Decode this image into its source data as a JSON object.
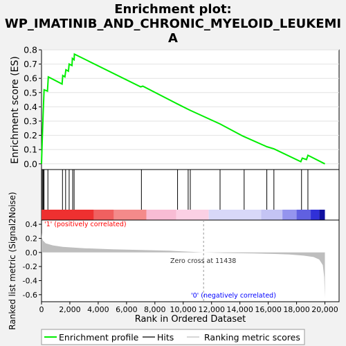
{
  "title_line1": "Enrichment plot:",
  "title_line2": "WP_IMATINIB_AND_CHRONIC_MYELOID_LEUKEMI",
  "title_line3": "A",
  "colors": {
    "es_line": "#00ee00",
    "hit": "#000000",
    "metric_fill": "#bebebe",
    "background": "#f2f2f2",
    "pos_label": "#ff0000",
    "neg_label": "#0000ff"
  },
  "chart_data": [
    {
      "type": "line",
      "name": "enrichment-profile",
      "ylabel": "Enrichment score (ES)",
      "xlim": [
        0,
        21000
      ],
      "ylim": [
        -0.04,
        0.8
      ],
      "yticks": [
        "0.0",
        "0.1",
        "0.2",
        "0.3",
        "0.4",
        "0.5",
        "0.6",
        "0.7",
        "0.8"
      ],
      "points": [
        [
          0,
          0
        ],
        [
          60,
          0.19
        ],
        [
          120,
          0.37
        ],
        [
          180,
          0.52
        ],
        [
          420,
          0.51
        ],
        [
          480,
          0.61
        ],
        [
          1450,
          0.56
        ],
        [
          1500,
          0.62
        ],
        [
          1650,
          0.61
        ],
        [
          1720,
          0.66
        ],
        [
          1900,
          0.65
        ],
        [
          1950,
          0.7
        ],
        [
          2150,
          0.69
        ],
        [
          2180,
          0.74
        ],
        [
          2300,
          0.73
        ],
        [
          2320,
          0.77
        ],
        [
          7000,
          0.54
        ],
        [
          7150,
          0.545
        ],
        [
          9600,
          0.42
        ],
        [
          10300,
          0.385
        ],
        [
          10500,
          0.375
        ],
        [
          12600,
          0.28
        ],
        [
          14200,
          0.195
        ],
        [
          15900,
          0.12
        ],
        [
          16400,
          0.105
        ],
        [
          18300,
          0.015
        ],
        [
          18400,
          0.04
        ],
        [
          18700,
          0.03
        ],
        [
          18800,
          0.06
        ],
        [
          20000,
          0
        ]
      ]
    },
    {
      "type": "scatter",
      "name": "hits",
      "x": [
        60,
        120,
        180,
        450,
        1480,
        1700,
        1950,
        2200,
        2300,
        7050,
        9600,
        10350,
        10500,
        12600,
        14300,
        15900,
        16400,
        18350,
        18800
      ]
    },
    {
      "type": "area",
      "name": "ranked-list-metric",
      "ylabel": "Ranked list metric (Signal2Noise)",
      "xlabel": "Rank in Ordered Dataset",
      "xlim": [
        0,
        21000
      ],
      "ylim": [
        -0.7,
        0.46
      ],
      "xticks": [
        "0",
        "2,000",
        "4,000",
        "6,000",
        "8,000",
        "10,000",
        "12,000",
        "14,000",
        "16,000",
        "18,000",
        "20,000"
      ],
      "yticks": [
        "-0.6",
        "-0.4",
        "-0.2",
        "0.0",
        "0.2",
        "0.4"
      ],
      "points": [
        [
          0,
          0.28
        ],
        [
          30,
          0.21
        ],
        [
          100,
          0.17
        ],
        [
          300,
          0.13
        ],
        [
          800,
          0.1
        ],
        [
          1500,
          0.08
        ],
        [
          3000,
          0.06
        ],
        [
          5000,
          0.045
        ],
        [
          7000,
          0.035
        ],
        [
          9000,
          0.025
        ],
        [
          11438,
          0
        ],
        [
          13000,
          -0.008
        ],
        [
          15000,
          -0.015
        ],
        [
          16500,
          -0.022
        ],
        [
          17500,
          -0.03
        ],
        [
          18500,
          -0.045
        ],
        [
          19200,
          -0.065
        ],
        [
          19600,
          -0.1
        ],
        [
          19850,
          -0.18
        ],
        [
          19950,
          -0.35
        ],
        [
          20000,
          -0.65
        ]
      ],
      "annotations": [
        "Zero cross at 11438",
        "'1' (positively correlated)",
        "'0' (negatively correlated)"
      ]
    }
  ],
  "legend": {
    "items": [
      {
        "label": "Enrichment profile",
        "color": "#00ee00"
      },
      {
        "label": "Hits",
        "color": "#000000"
      },
      {
        "label": "Ranking metric scores",
        "color": "#bebebe"
      }
    ]
  }
}
